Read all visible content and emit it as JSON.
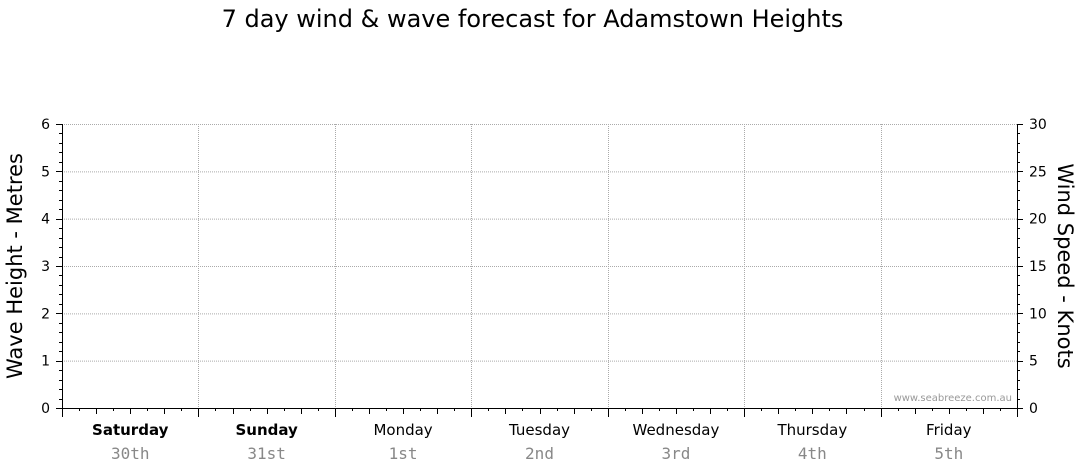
{
  "title": "7 day wind & wave forecast for Adamstown Heights",
  "watermark": "www.seabreeze.com.au",
  "chart_data": {
    "type": "line",
    "title": "7 day wind & wave forecast for Adamstown Heights",
    "left_axis": {
      "label": "Wave Height - Metres",
      "range": [
        0,
        6
      ],
      "ticks": [
        "0",
        "1",
        "2",
        "3",
        "4",
        "5",
        "6"
      ]
    },
    "right_axis": {
      "label": "Wind Speed - Knots",
      "range": [
        0,
        30
      ],
      "ticks": [
        "0",
        "5",
        "10",
        "15",
        "20",
        "25",
        "30"
      ]
    },
    "grid": true,
    "days": [
      {
        "name": "Saturday",
        "date": "30th",
        "bold": true
      },
      {
        "name": "Sunday",
        "date": "31st",
        "bold": true
      },
      {
        "name": "Monday",
        "date": "1st",
        "bold": false
      },
      {
        "name": "Tuesday",
        "date": "2nd",
        "bold": false
      },
      {
        "name": "Wednesday",
        "date": "3rd",
        "bold": false
      },
      {
        "name": "Thursday",
        "date": "4th",
        "bold": false
      },
      {
        "name": "Friday",
        "date": "5th",
        "bold": false
      }
    ],
    "series": []
  }
}
